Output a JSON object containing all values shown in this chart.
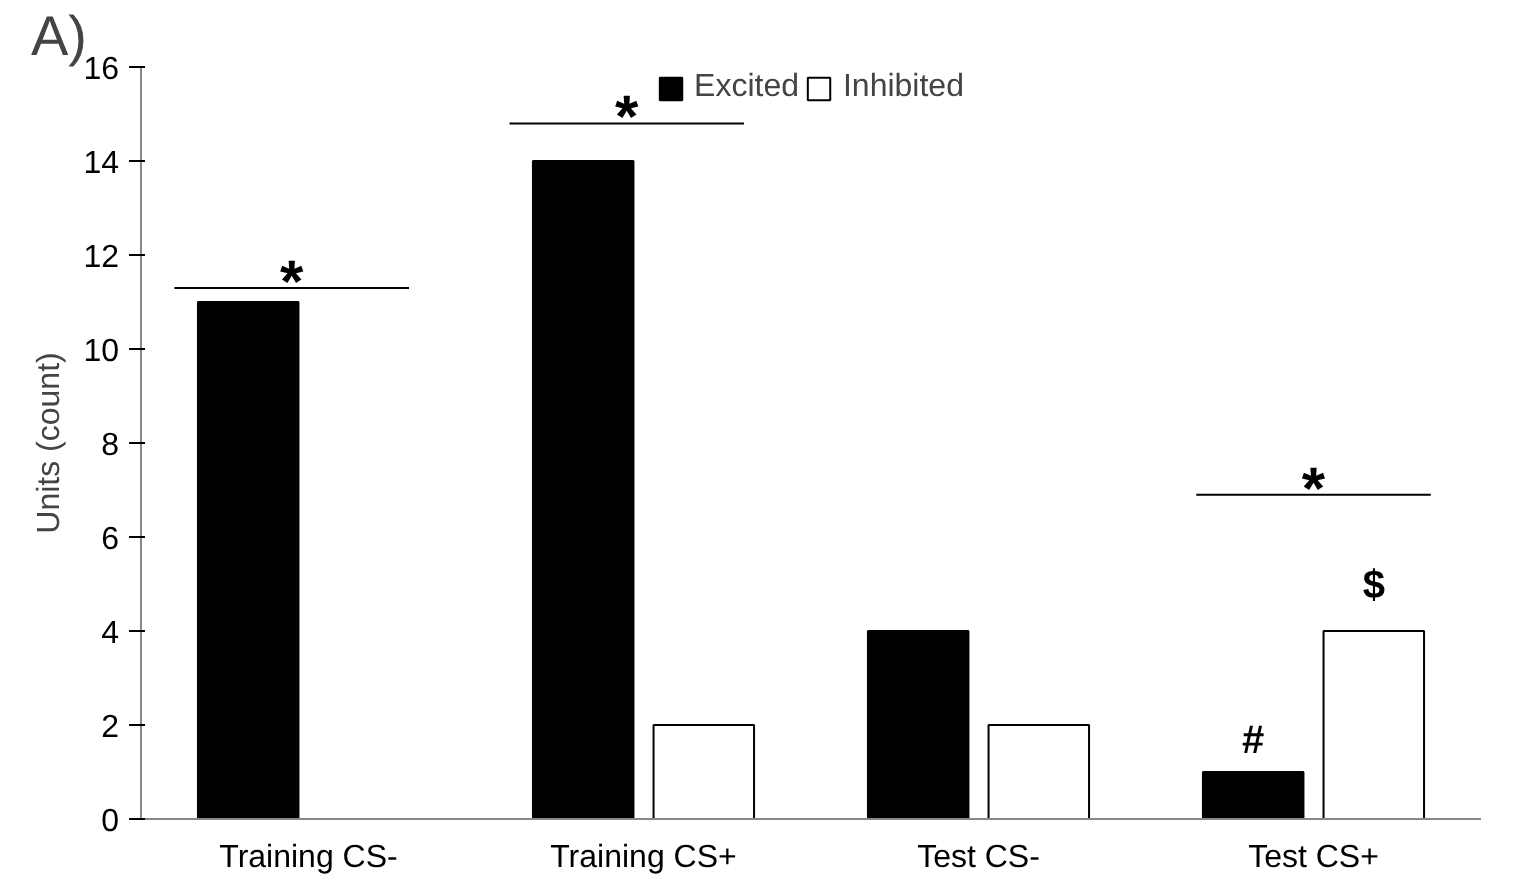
{
  "chart_data": {
    "type": "bar",
    "ylabel": "Units (count)",
    "categories": [
      "Training CS-",
      "Training CS+",
      "Test CS-",
      "Test CS+"
    ],
    "series": [
      {
        "name": "Excited",
        "color": "#000000",
        "values": [
          11,
          14,
          4,
          1
        ]
      },
      {
        "name": "Inhibited",
        "color": "#ffffff",
        "values": [
          null,
          2,
          2,
          4
        ]
      }
    ],
    "ylim": [
      0,
      16
    ],
    "yticks": [
      0,
      2,
      4,
      6,
      8,
      10,
      12,
      14,
      16
    ],
    "grid": false,
    "legend": "top",
    "annotations": [
      "A)",
      "*",
      "*",
      "*",
      "#",
      "$"
    ]
  }
}
